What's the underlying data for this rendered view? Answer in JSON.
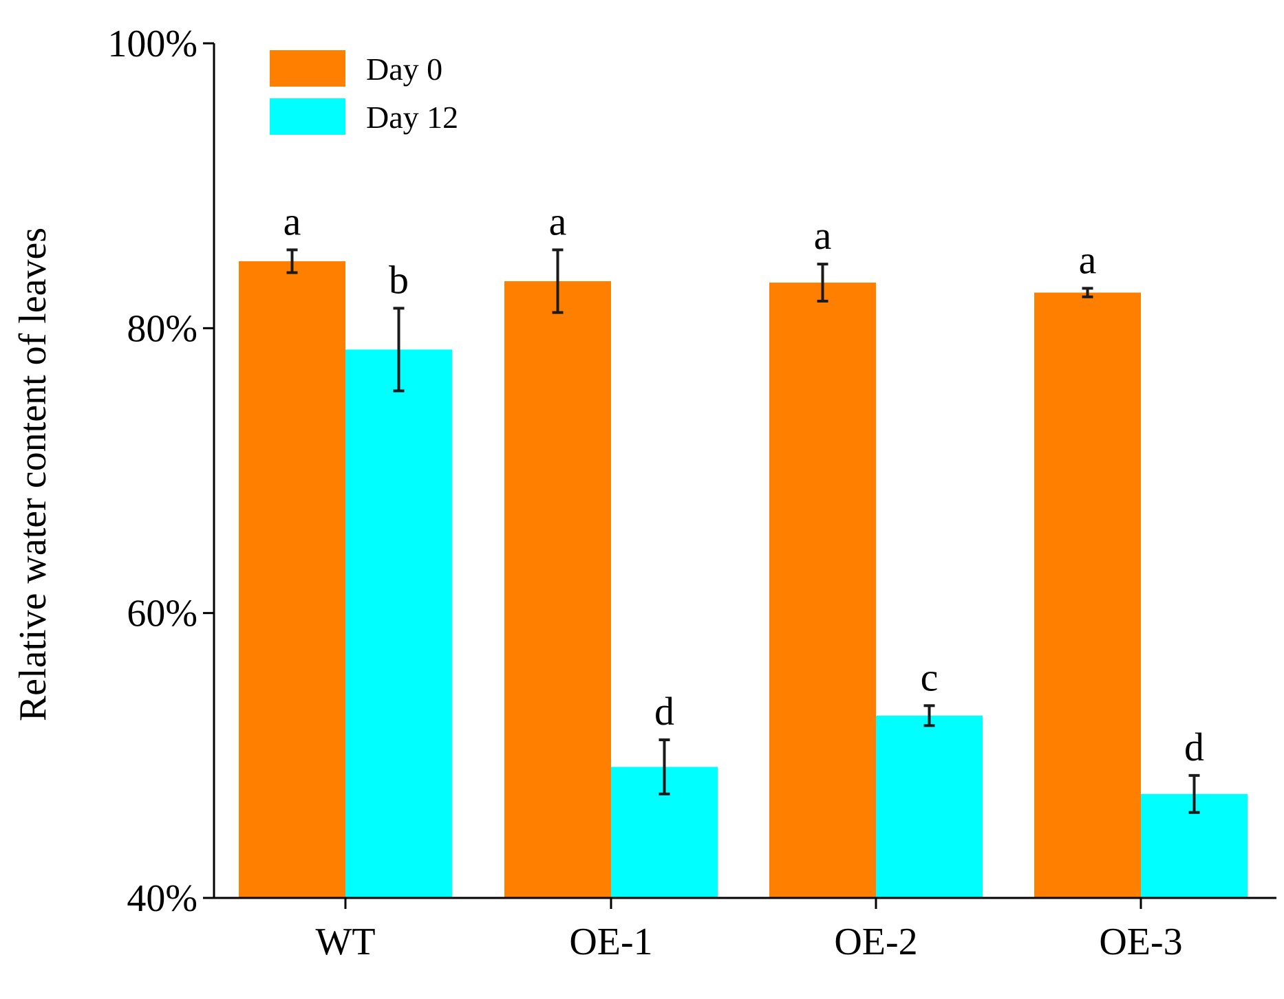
{
  "chart_data": {
    "type": "bar",
    "title": "",
    "xlabel": "",
    "ylabel": "Relative water content of leaves",
    "ylim": [
      40,
      100
    ],
    "yticks": [
      {
        "value": 40,
        "label": "40%"
      },
      {
        "value": 60,
        "label": "60%"
      },
      {
        "value": 80,
        "label": "80%"
      },
      {
        "value": 100,
        "label": "100%"
      }
    ],
    "categories": [
      "WT",
      "OE-1",
      "OE-2",
      "OE-3"
    ],
    "legend_position": "top-left",
    "grid": false,
    "series": [
      {
        "name": "Day  0",
        "color": "#ff8000",
        "values": [
          84.7,
          83.3,
          83.2,
          82.5
        ],
        "errors": [
          0.8,
          2.2,
          1.3,
          0.3
        ],
        "significance": [
          "a",
          "a",
          "a",
          "a"
        ]
      },
      {
        "name": "Day 12",
        "color": "#00ffff",
        "values": [
          78.5,
          49.2,
          52.8,
          47.3
        ],
        "errors": [
          2.9,
          1.9,
          0.7,
          1.3
        ],
        "significance": [
          "b",
          "d",
          "c",
          "d"
        ]
      }
    ]
  }
}
